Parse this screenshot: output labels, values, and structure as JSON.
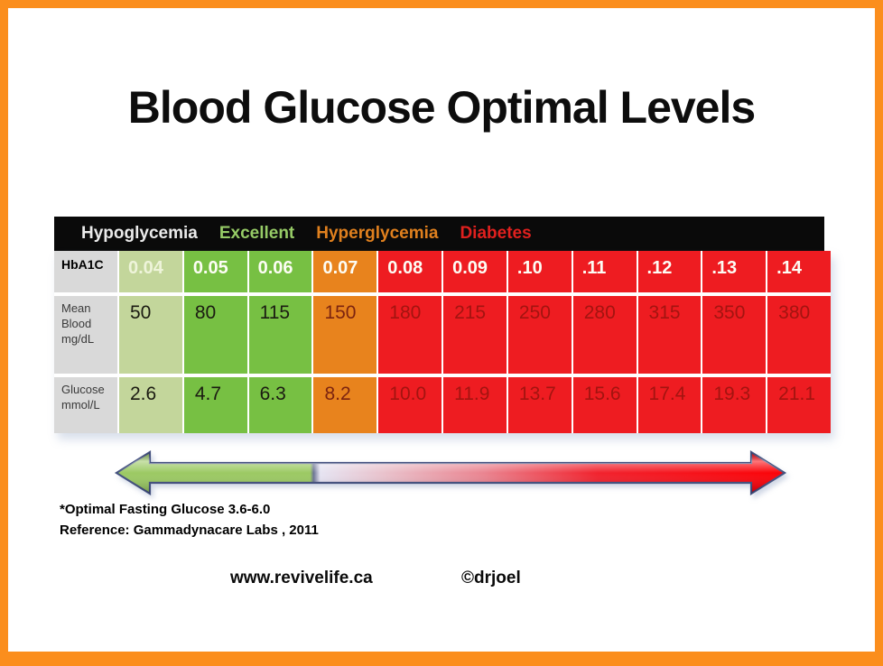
{
  "page": {
    "title": "Blood Glucose Optimal Levels",
    "footnote_line1": "*Optimal Fasting Glucose 3.6-6.0",
    "footnote_line2": "Reference: Gammadynacare Labs , 2011",
    "website": "www.revivelife.ca",
    "credit": "©drjoel"
  },
  "legend": {
    "zones": [
      {
        "label": "Hypoglycemia",
        "color": "#ebebeb"
      },
      {
        "label": "Excellent",
        "color": "#96cb66"
      },
      {
        "label": "Hyperglycemia",
        "color": "#e0801e"
      },
      {
        "label": "Diabetes",
        "color": "#e0201e"
      }
    ]
  },
  "table": {
    "corner_label": "HbA1C",
    "row_labels": [
      "Mean\nBlood\nmg/dL",
      "Glucose\nmmol/L"
    ],
    "header_values": [
      "0.04",
      "0.05",
      "0.06",
      "0.07",
      "0.08",
      "0.09",
      ".10",
      ".11",
      ".12",
      ".13",
      ".14"
    ],
    "rows": [
      [
        "50",
        "80",
        "115",
        "150",
        "180",
        "215",
        "250",
        "280",
        "315",
        "350",
        "380"
      ],
      [
        "2.6",
        "4.7",
        "6.3",
        "8.2",
        "10.0",
        "11.9",
        "13.7",
        "15.6",
        "17.4",
        "19.3",
        "21.1"
      ]
    ],
    "column_zone": [
      "lightgreen",
      "green",
      "green",
      "orange",
      "red",
      "red",
      "red",
      "red",
      "red",
      "red",
      "red"
    ]
  },
  "colors": {
    "frame_orange": "#fb8e1d",
    "bar_black": "#0a0a0a",
    "label_gray": "#d9d9d9",
    "cell_lightgreen": "#c3d69b",
    "cell_green": "#77c043",
    "cell_orange": "#e8831d",
    "cell_red": "#ee1c21",
    "arrow_green": "#9cc964",
    "arrow_red": "#fb0308",
    "arrow_outline": "#44517f"
  },
  "chart_data": {
    "type": "table",
    "title": "Blood Glucose Optimal Levels",
    "zone_labels": [
      "Hypoglycemia",
      "Excellent",
      "Hyperglycemia",
      "Diabetes"
    ],
    "categories_label": "HbA1C",
    "categories": [
      "0.04",
      "0.05",
      "0.06",
      "0.07",
      "0.08",
      "0.09",
      ".10",
      ".11",
      ".12",
      ".13",
      ".14"
    ],
    "series": [
      {
        "name": "Mean Blood mg/dL",
        "values": [
          50,
          80,
          115,
          150,
          180,
          215,
          250,
          280,
          315,
          350,
          380
        ]
      },
      {
        "name": "Glucose mmol/L",
        "values": [
          2.6,
          4.7,
          6.3,
          8.2,
          10.0,
          11.9,
          13.7,
          15.6,
          17.4,
          19.3,
          21.1
        ]
      }
    ],
    "column_risk_zone": [
      "Hypoglycemia",
      "Excellent",
      "Excellent",
      "Hyperglycemia",
      "Diabetes",
      "Diabetes",
      "Diabetes",
      "Diabetes",
      "Diabetes",
      "Diabetes",
      "Diabetes"
    ],
    "annotations": [
      "*Optimal Fasting Glucose 3.6-6.0",
      "Reference: Gammadynacare Labs , 2011"
    ]
  }
}
